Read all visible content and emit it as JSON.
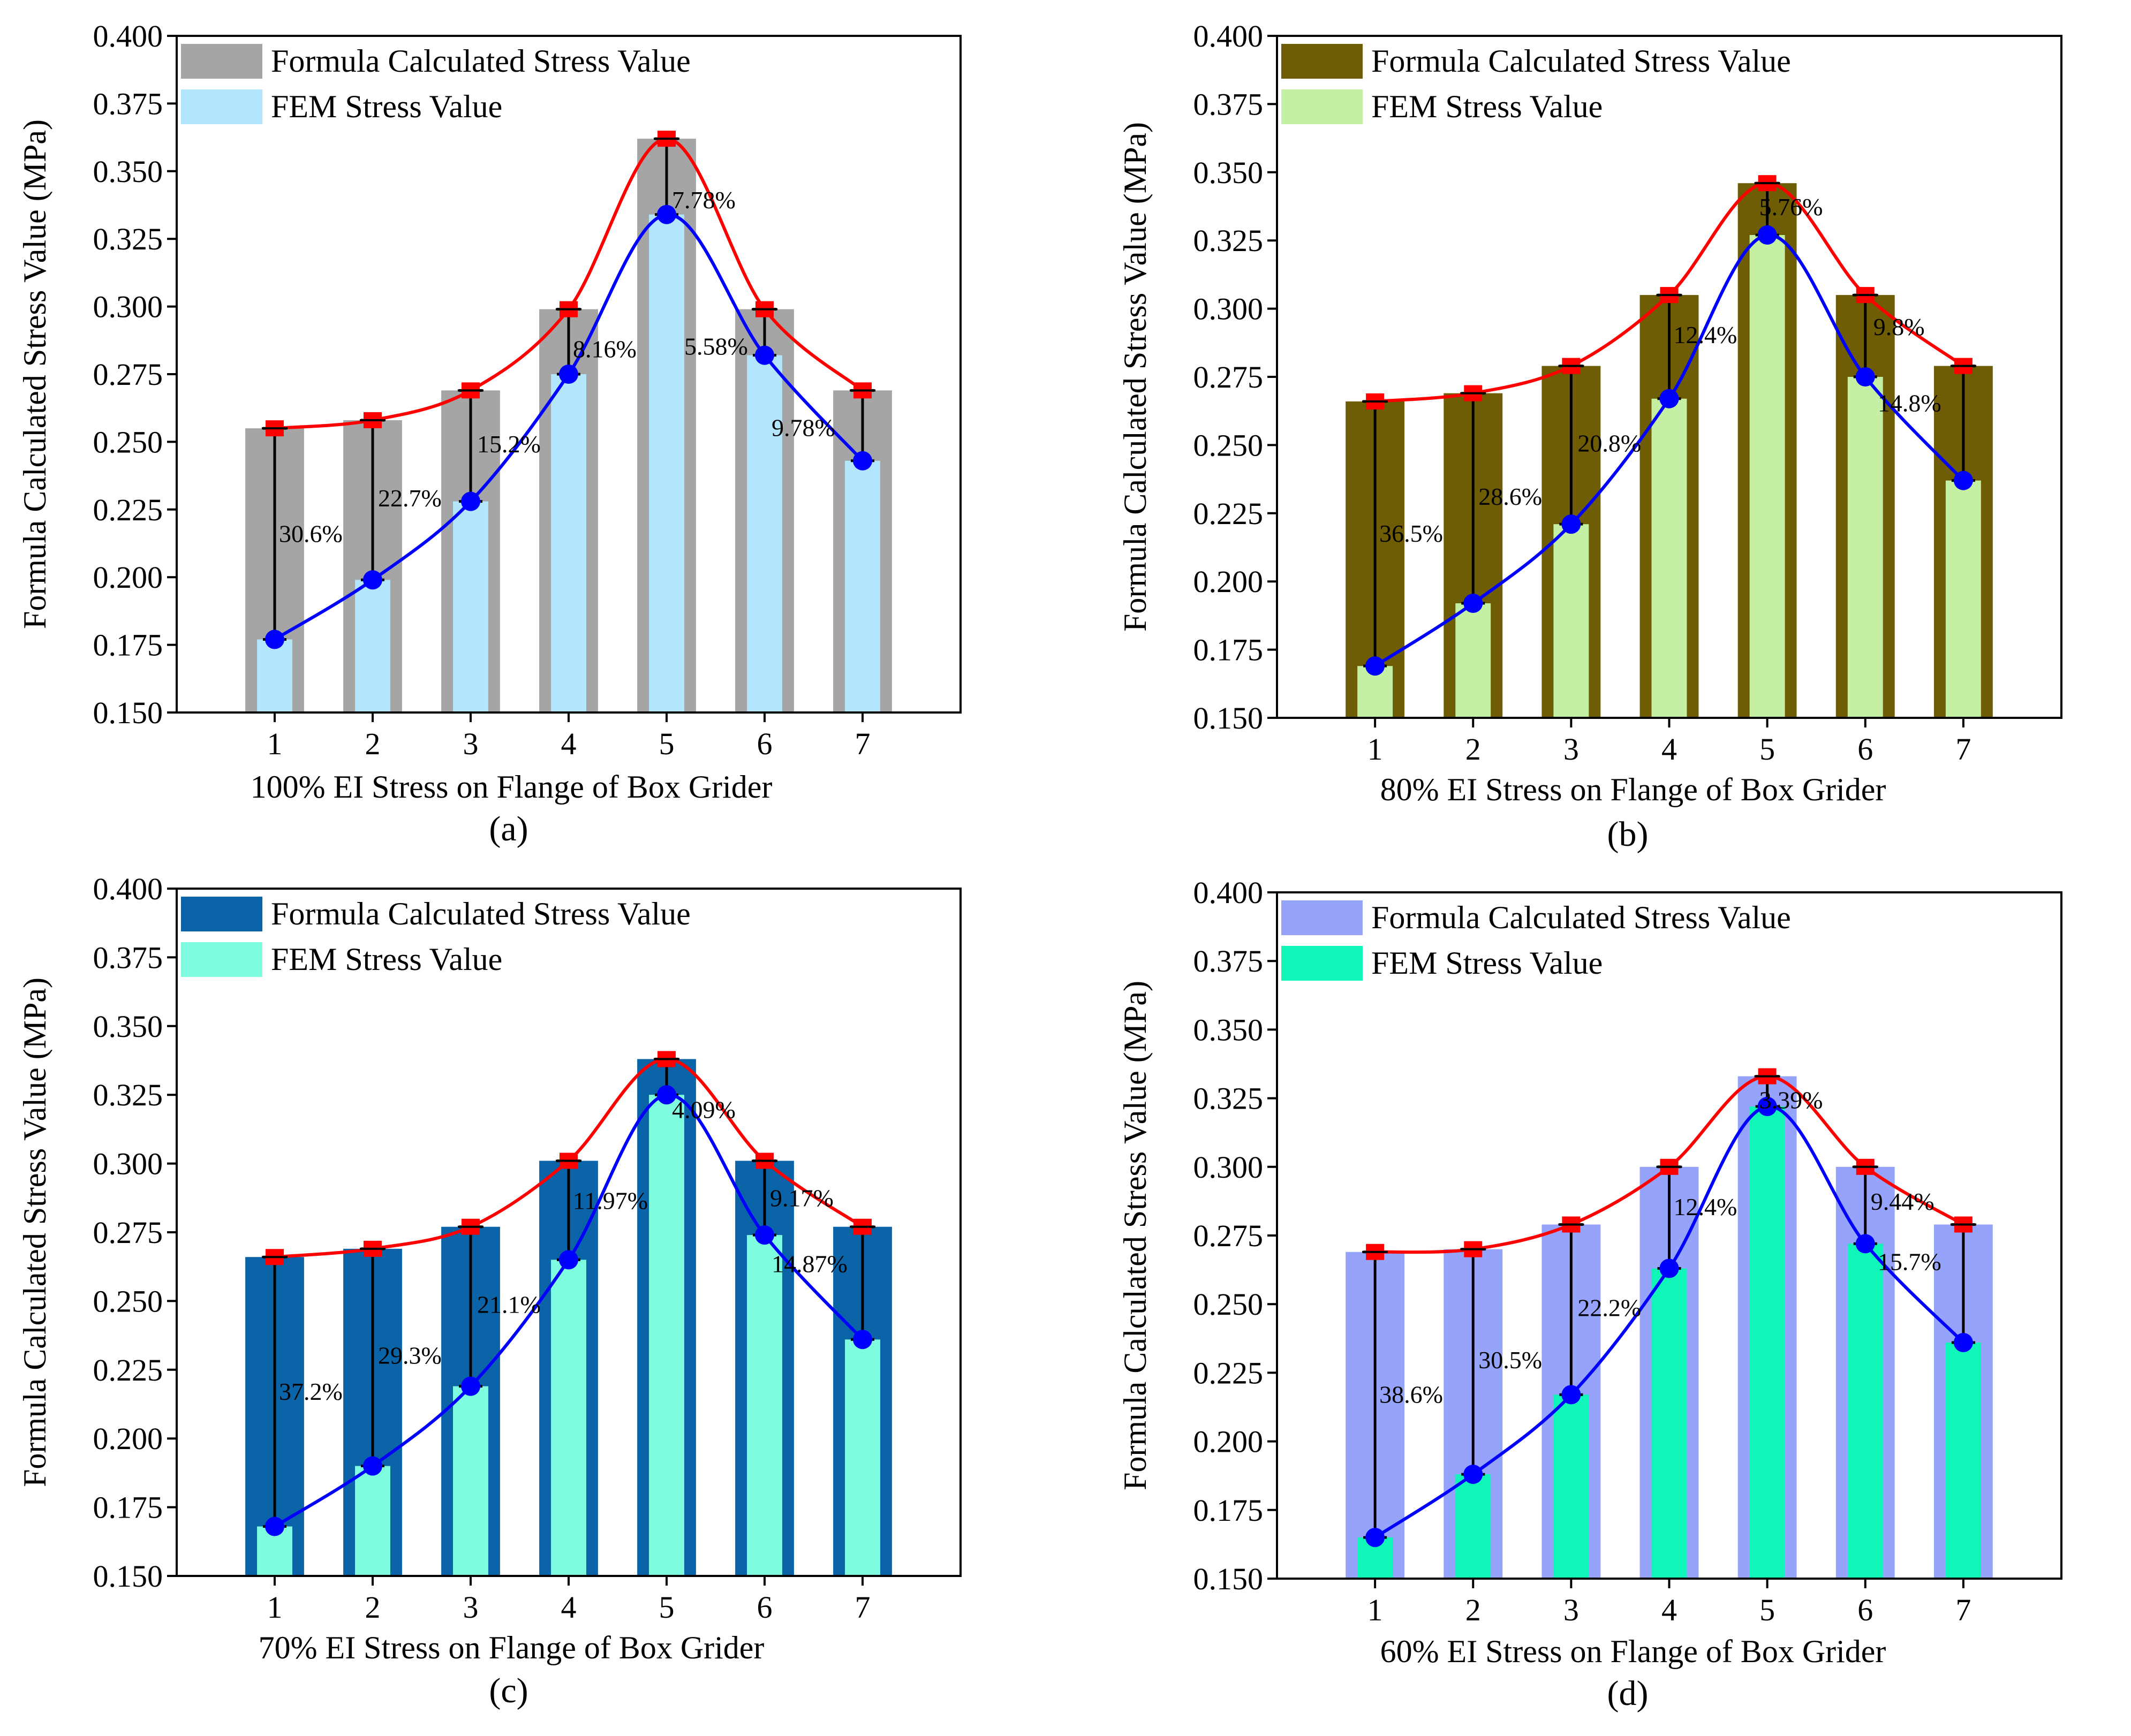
{
  "chart_data": [
    {
      "type": "bar",
      "panel_label": "(a)",
      "xlabel": "100% EI Stress on Flange of Box Grider",
      "ylabel": "Formula Calculated Stress Value (MPa)",
      "ylim": [
        0.15,
        0.4
      ],
      "yticks": [
        "0.150",
        "0.175",
        "0.200",
        "0.225",
        "0.250",
        "0.275",
        "0.300",
        "0.325",
        "0.350",
        "0.375",
        "0.400"
      ],
      "categories": [
        "1",
        "2",
        "3",
        "4",
        "5",
        "6",
        "7"
      ],
      "series": [
        {
          "name": "Formula Calculated Stress Value",
          "values": [
            0.255,
            0.258,
            0.269,
            0.299,
            0.362,
            0.299,
            0.269
          ],
          "color": "#a5a5a5"
        },
        {
          "name": "FEM Stress Value",
          "values": [
            0.177,
            0.199,
            0.228,
            0.275,
            0.334,
            0.282,
            0.243
          ],
          "color": "#b3e5fc"
        }
      ],
      "differences": [
        "30.6%",
        "22.7%",
        "15.2%",
        "8.16%",
        "7.78%",
        "5.58%",
        "9.78%"
      ]
    },
    {
      "type": "bar",
      "panel_label": "(b)",
      "xlabel": "80% EI Stress on Flange of Box Grider",
      "ylabel": "Formula Calculated Stress Value (MPa)",
      "ylim": [
        0.15,
        0.4
      ],
      "yticks": [
        "0.150",
        "0.175",
        "0.200",
        "0.225",
        "0.250",
        "0.275",
        "0.300",
        "0.325",
        "0.350",
        "0.375",
        "0.400"
      ],
      "categories": [
        "1",
        "2",
        "3",
        "4",
        "5",
        "6",
        "7"
      ],
      "series": [
        {
          "name": "Formula Calculated Stress Value",
          "values": [
            0.266,
            0.269,
            0.279,
            0.305,
            0.346,
            0.305,
            0.279
          ],
          "color": "#6e5d04"
        },
        {
          "name": "FEM Stress Value",
          "values": [
            0.169,
            0.192,
            0.221,
            0.267,
            0.327,
            0.275,
            0.237
          ],
          "color": "#c5f0a4"
        }
      ],
      "differences": [
        "36.5%",
        "28.6%",
        "20.8%",
        "12.4%",
        "5.76%",
        "9.8%",
        "14.8%"
      ]
    },
    {
      "type": "bar",
      "panel_label": "(c)",
      "xlabel": "70% EI Stress on Flange of Box Grider",
      "ylabel": "Formula Calculated Stress Value (MPa)",
      "ylim": [
        0.15,
        0.4
      ],
      "yticks": [
        "0.150",
        "0.175",
        "0.200",
        "0.225",
        "0.250",
        "0.275",
        "0.300",
        "0.325",
        "0.350",
        "0.375",
        "0.400"
      ],
      "categories": [
        "1",
        "2",
        "3",
        "4",
        "5",
        "6",
        "7"
      ],
      "series": [
        {
          "name": "Formula Calculated Stress Value",
          "values": [
            0.266,
            0.269,
            0.277,
            0.301,
            0.338,
            0.301,
            0.277
          ],
          "color": "#0b64a8"
        },
        {
          "name": "FEM Stress Value",
          "values": [
            0.168,
            0.19,
            0.219,
            0.265,
            0.325,
            0.274,
            0.236
          ],
          "color": "#7ffce0"
        }
      ],
      "differences": [
        "37.2%",
        "29.3%",
        "21.1%",
        "11.97%",
        "4.09%",
        "9.17%",
        "14.87%"
      ]
    },
    {
      "type": "bar",
      "panel_label": "(d)",
      "xlabel": "60% EI Stress on Flange of Box Grider",
      "ylabel": "Formula Calculated Stress Value (MPa)",
      "ylim": [
        0.15,
        0.4
      ],
      "yticks": [
        "0.150",
        "0.175",
        "0.200",
        "0.225",
        "0.250",
        "0.275",
        "0.300",
        "0.325",
        "0.350",
        "0.375",
        "0.400"
      ],
      "categories": [
        "1",
        "2",
        "3",
        "4",
        "5",
        "6",
        "7"
      ],
      "series": [
        {
          "name": "Formula Calculated Stress Value",
          "values": [
            0.269,
            0.27,
            0.279,
            0.3,
            0.333,
            0.3,
            0.279
          ],
          "color": "#95a3fb"
        },
        {
          "name": "FEM Stress Value",
          "values": [
            0.165,
            0.188,
            0.217,
            0.263,
            0.322,
            0.272,
            0.236
          ],
          "color": "#0ff6b8"
        }
      ],
      "differences": [
        "38.6%",
        "30.5%",
        "22.2%",
        "12.4%",
        "3.39%",
        "9.44%",
        "15.7%"
      ]
    }
  ]
}
